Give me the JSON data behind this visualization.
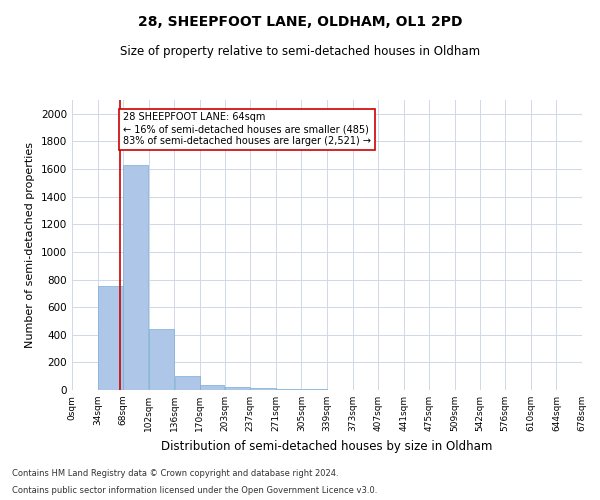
{
  "title": "28, SHEEPFOOT LANE, OLDHAM, OL1 2PD",
  "subtitle": "Size of property relative to semi-detached houses in Oldham",
  "xlabel": "Distribution of semi-detached houses by size in Oldham",
  "ylabel": "Number of semi-detached properties",
  "footnote1": "Contains HM Land Registry data © Crown copyright and database right 2024.",
  "footnote2": "Contains public sector information licensed under the Open Government Licence v3.0.",
  "annotation_line1": "28 SHEEPFOOT LANE: 64sqm",
  "annotation_line2": "← 16% of semi-detached houses are smaller (485)",
  "annotation_line3": "83% of semi-detached houses are larger (2,521) →",
  "property_size": 64,
  "bar_edges": [
    0,
    34,
    68,
    102,
    136,
    170,
    203,
    237,
    271,
    305,
    339,
    373,
    407,
    441,
    475,
    509,
    542,
    576,
    610,
    644,
    678
  ],
  "bar_heights": [
    0,
    750,
    1630,
    440,
    105,
    38,
    25,
    15,
    10,
    10,
    0,
    0,
    0,
    0,
    0,
    0,
    0,
    0,
    0,
    0
  ],
  "bar_color": "#aec6e8",
  "bar_edgecolor": "#7aadd4",
  "grid_color": "#d0d8e8",
  "vline_color": "#cc0000",
  "annotation_box_edgecolor": "#cc0000",
  "annotation_box_facecolor": "#ffffff",
  "background_color": "#ffffff",
  "ylim": [
    0,
    2100
  ],
  "yticks": [
    0,
    200,
    400,
    600,
    800,
    1000,
    1200,
    1400,
    1600,
    1800,
    2000
  ],
  "tick_labels": [
    "0sqm",
    "34sqm",
    "68sqm",
    "102sqm",
    "136sqm",
    "170sqm",
    "203sqm",
    "237sqm",
    "271sqm",
    "305sqm",
    "339sqm",
    "373sqm",
    "407sqm",
    "441sqm",
    "475sqm",
    "509sqm",
    "542sqm",
    "576sqm",
    "610sqm",
    "644sqm",
    "678sqm"
  ],
  "title_fontsize": 10,
  "subtitle_fontsize": 8.5,
  "xlabel_fontsize": 8.5,
  "ylabel_fontsize": 8,
  "xtick_fontsize": 6.5,
  "ytick_fontsize": 7.5,
  "footnote_fontsize": 6,
  "annotation_fontsize": 7
}
